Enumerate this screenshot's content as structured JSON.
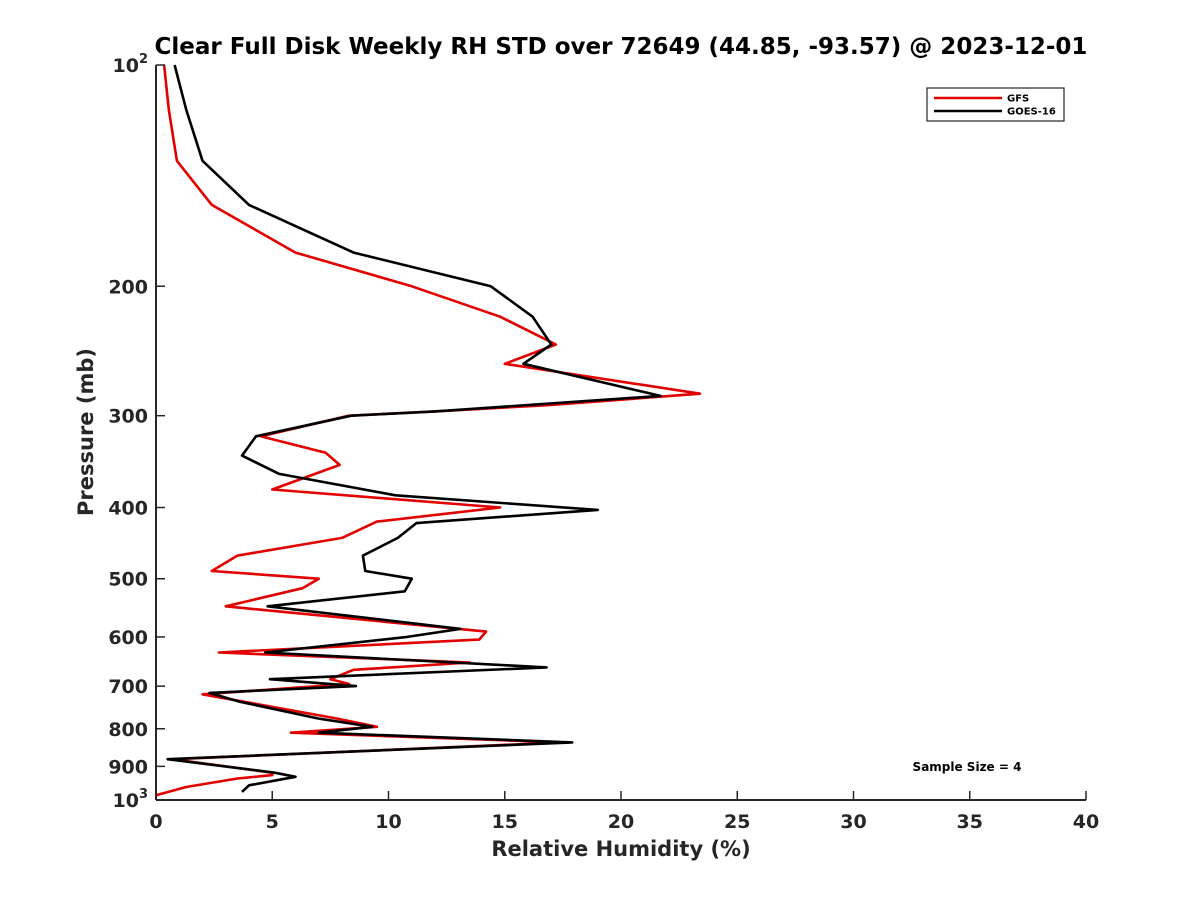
{
  "chart_data": {
    "type": "line",
    "title": "Clear Full Disk Weekly RH STD over 72649 (44.85, -93.57) @ 2023-12-01",
    "xlabel": "Relative Humidity (%)",
    "ylabel": "Pressure (mb)",
    "xlim": [
      0,
      40
    ],
    "ylim": [
      100,
      1000
    ],
    "y_scale": "log",
    "y_reversed": true,
    "grid": false,
    "legend_position": "top-right",
    "x_ticks": [
      "0",
      "5",
      "10",
      "15",
      "20",
      "25",
      "30",
      "35",
      "40"
    ],
    "y_ticks": [
      {
        "value": 100,
        "base": "10",
        "sup": "2"
      },
      {
        "value": 200,
        "base": "200",
        "sup": ""
      },
      {
        "value": 300,
        "base": "300",
        "sup": ""
      },
      {
        "value": 400,
        "base": "400",
        "sup": ""
      },
      {
        "value": 500,
        "base": "500",
        "sup": ""
      },
      {
        "value": 600,
        "base": "600",
        "sup": ""
      },
      {
        "value": 700,
        "base": "700",
        "sup": ""
      },
      {
        "value": 800,
        "base": "800",
        "sup": ""
      },
      {
        "value": 900,
        "base": "900",
        "sup": ""
      },
      {
        "value": 1000,
        "base": "10",
        "sup": "3"
      }
    ],
    "annotation": "Sample Size = 4",
    "series": [
      {
        "name": "GFS",
        "color": "#e30000",
        "points": [
          [
            0.35,
            100
          ],
          [
            0.55,
            115
          ],
          [
            0.9,
            135
          ],
          [
            2.4,
            155
          ],
          [
            6.0,
            180
          ],
          [
            11.0,
            200
          ],
          [
            14.8,
            220
          ],
          [
            17.2,
            240
          ],
          [
            15.0,
            255
          ],
          [
            23.4,
            280
          ],
          [
            17.0,
            290
          ],
          [
            12.0,
            296
          ],
          [
            8.3,
            300
          ],
          [
            4.5,
            320
          ],
          [
            7.3,
            337
          ],
          [
            7.9,
            350
          ],
          [
            5.0,
            378
          ],
          [
            14.8,
            400
          ],
          [
            9.5,
            418
          ],
          [
            8.0,
            440
          ],
          [
            3.5,
            465
          ],
          [
            2.4,
            488
          ],
          [
            7.0,
            500
          ],
          [
            6.3,
            515
          ],
          [
            3.0,
            545
          ],
          [
            14.2,
            590
          ],
          [
            13.9,
            605
          ],
          [
            2.7,
            630
          ],
          [
            13.5,
            650
          ],
          [
            8.5,
            665
          ],
          [
            7.5,
            685
          ],
          [
            8.3,
            695
          ],
          [
            2.0,
            718
          ],
          [
            7.8,
            775
          ],
          [
            9.5,
            795
          ],
          [
            5.8,
            810
          ],
          [
            17.5,
            835
          ],
          [
            0.7,
            880
          ],
          [
            5.0,
            918
          ],
          [
            5.0,
            925
          ],
          [
            3.5,
            935
          ],
          [
            1.3,
            960
          ],
          [
            0.0,
            985
          ]
        ]
      },
      {
        "name": "GOES-16",
        "color": "#000000",
        "points": [
          [
            0.8,
            100
          ],
          [
            1.3,
            115
          ],
          [
            2.0,
            135
          ],
          [
            4.0,
            155
          ],
          [
            8.5,
            180
          ],
          [
            14.4,
            200
          ],
          [
            16.2,
            220
          ],
          [
            17.0,
            240
          ],
          [
            15.8,
            255
          ],
          [
            21.7,
            282
          ],
          [
            12.0,
            296
          ],
          [
            8.4,
            300
          ],
          [
            4.3,
            320
          ],
          [
            3.7,
            340
          ],
          [
            5.3,
            360
          ],
          [
            10.3,
            385
          ],
          [
            19.0,
            403
          ],
          [
            11.2,
            420
          ],
          [
            10.4,
            440
          ],
          [
            8.9,
            465
          ],
          [
            9.0,
            488
          ],
          [
            11.0,
            500
          ],
          [
            10.7,
            520
          ],
          [
            4.8,
            545
          ],
          [
            13.1,
            585
          ],
          [
            10.8,
            600
          ],
          [
            4.7,
            630
          ],
          [
            16.8,
            660
          ],
          [
            4.9,
            685
          ],
          [
            8.6,
            700
          ],
          [
            2.3,
            715
          ],
          [
            3.6,
            735
          ],
          [
            7.0,
            775
          ],
          [
            9.3,
            795
          ],
          [
            7.0,
            810
          ],
          [
            17.9,
            835
          ],
          [
            0.5,
            880
          ],
          [
            5.1,
            918
          ],
          [
            6.0,
            930
          ],
          [
            4.0,
            955
          ],
          [
            3.7,
            975
          ]
        ]
      }
    ]
  }
}
